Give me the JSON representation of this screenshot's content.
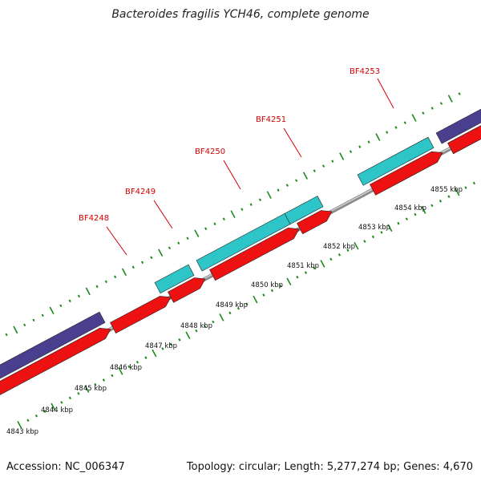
{
  "title": "Bacteroides fragilis YCH46, complete genome",
  "footer": {
    "accession": "Accession: NC_006347",
    "topology": "Topology: circular; Length: 5,277,274 bp; Genes: 4,670"
  },
  "colors": {
    "forward_cds": "#2dc5c8",
    "reverse_cds": "#ee1111",
    "other_track": "#4a3f8f",
    "backbone": "#8a8a8a",
    "ticks": "#1a8a1a",
    "labels": "#d40000"
  },
  "gene_labels": [
    "BF4248",
    "BF4249",
    "BF4250",
    "BF4251",
    "BF4253"
  ],
  "kbp_labels": [
    "4843 kbp",
    "4844 kbp",
    "4845 kbp",
    "4846 kbp",
    "4847 kbp",
    "4848 kbp",
    "4849 kbp",
    "4850 kbp",
    "4851 kbp",
    "4852 kbp",
    "4853 kbp",
    "4854 kbp",
    "4855 kbp"
  ]
}
